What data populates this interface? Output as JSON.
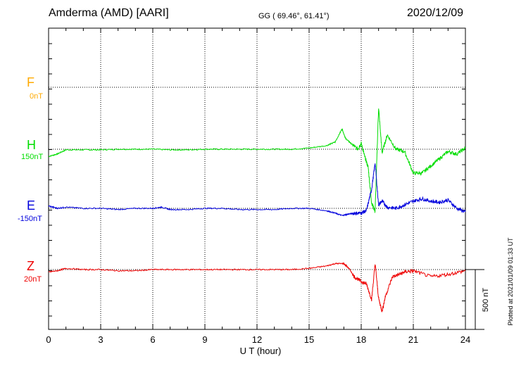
{
  "header": {
    "station": "Amderma (AMD)  [AARI]",
    "coords": "GG ( 69.46°,  61.41°)",
    "date": "2020/12/09"
  },
  "traces": [
    {
      "name": "F",
      "baseline": "0nT",
      "color": "#ffaa00"
    },
    {
      "name": "H",
      "baseline": "150nT",
      "color": "#00dd00"
    },
    {
      "name": "E",
      "baseline": "-150nT",
      "color": "#0000dd"
    },
    {
      "name": "Z",
      "baseline": "20nT",
      "color": "#ee0000"
    }
  ],
  "xaxis": {
    "label": "U T (hour)",
    "ticks": [
      "0",
      "3",
      "6",
      "9",
      "12",
      "15",
      "18",
      "21",
      "24"
    ]
  },
  "scale_bar_label": "500 nT",
  "plotted_note": "Plotted at 2021/01/09 01:33 UT",
  "chart_data": {
    "type": "line",
    "xlim": [
      0,
      24
    ],
    "grid": true,
    "xlabel": "U T (hour)",
    "series": [
      {
        "name": "H",
        "color": "#00dd00",
        "x": [
          0,
          0.5,
          1,
          2,
          3,
          4,
          5,
          6,
          7,
          8,
          9,
          10,
          11,
          12,
          13,
          14,
          15,
          16,
          16.5,
          16.9,
          17.1,
          17.4,
          17.8,
          18,
          18.2,
          18.4,
          18.6,
          18.8,
          19,
          19.2,
          19.5,
          20,
          20.5,
          21,
          21.5,
          22,
          22.5,
          23,
          23.5,
          24
        ],
        "y": [
          -60,
          -40,
          -5,
          -5,
          -5,
          0,
          0,
          0,
          -5,
          -5,
          0,
          0,
          0,
          0,
          0,
          0,
          10,
          30,
          60,
          170,
          90,
          50,
          0,
          50,
          -60,
          -150,
          -450,
          -520,
          350,
          -30,
          120,
          0,
          -20,
          -200,
          -200,
          -140,
          -80,
          -20,
          -40,
          10
        ]
      },
      {
        "name": "E",
        "color": "#0000dd",
        "x": [
          0,
          0.5,
          1,
          2,
          3,
          4,
          5,
          6,
          6.5,
          7,
          8,
          9,
          10,
          11,
          12,
          13,
          14,
          15,
          16,
          16.5,
          16.9,
          17.2,
          17.6,
          18,
          18.3,
          18.6,
          18.8,
          19,
          19.2,
          19.5,
          20,
          20.5,
          21,
          21.5,
          22,
          22.5,
          23,
          23.5,
          24
        ],
        "y": [
          20,
          0,
          10,
          0,
          0,
          -10,
          0,
          0,
          10,
          -10,
          -10,
          0,
          0,
          -10,
          -10,
          -10,
          0,
          0,
          -20,
          -40,
          -60,
          -50,
          -40,
          -40,
          -20,
          160,
          380,
          30,
          60,
          10,
          0,
          30,
          60,
          80,
          60,
          50,
          70,
          0,
          -30
        ]
      },
      {
        "name": "Z",
        "color": "#ee0000",
        "x": [
          0,
          0.5,
          1,
          2,
          3,
          4,
          5,
          6,
          7,
          8,
          9,
          10,
          11,
          12,
          13,
          14,
          15,
          16,
          16.5,
          17,
          17.3,
          17.6,
          18,
          18.3,
          18.6,
          18.8,
          19,
          19.2,
          19.4,
          19.8,
          20.2,
          20.5,
          21,
          22,
          23,
          24
        ],
        "y": [
          -20,
          -10,
          10,
          0,
          0,
          -10,
          -10,
          0,
          0,
          0,
          0,
          0,
          0,
          0,
          0,
          0,
          10,
          30,
          50,
          50,
          10,
          -60,
          -100,
          -120,
          -250,
          50,
          -240,
          -350,
          -220,
          -60,
          -40,
          -20,
          -10,
          -60,
          -40,
          -10
        ]
      }
    ],
    "reference_trace_label": "F"
  }
}
